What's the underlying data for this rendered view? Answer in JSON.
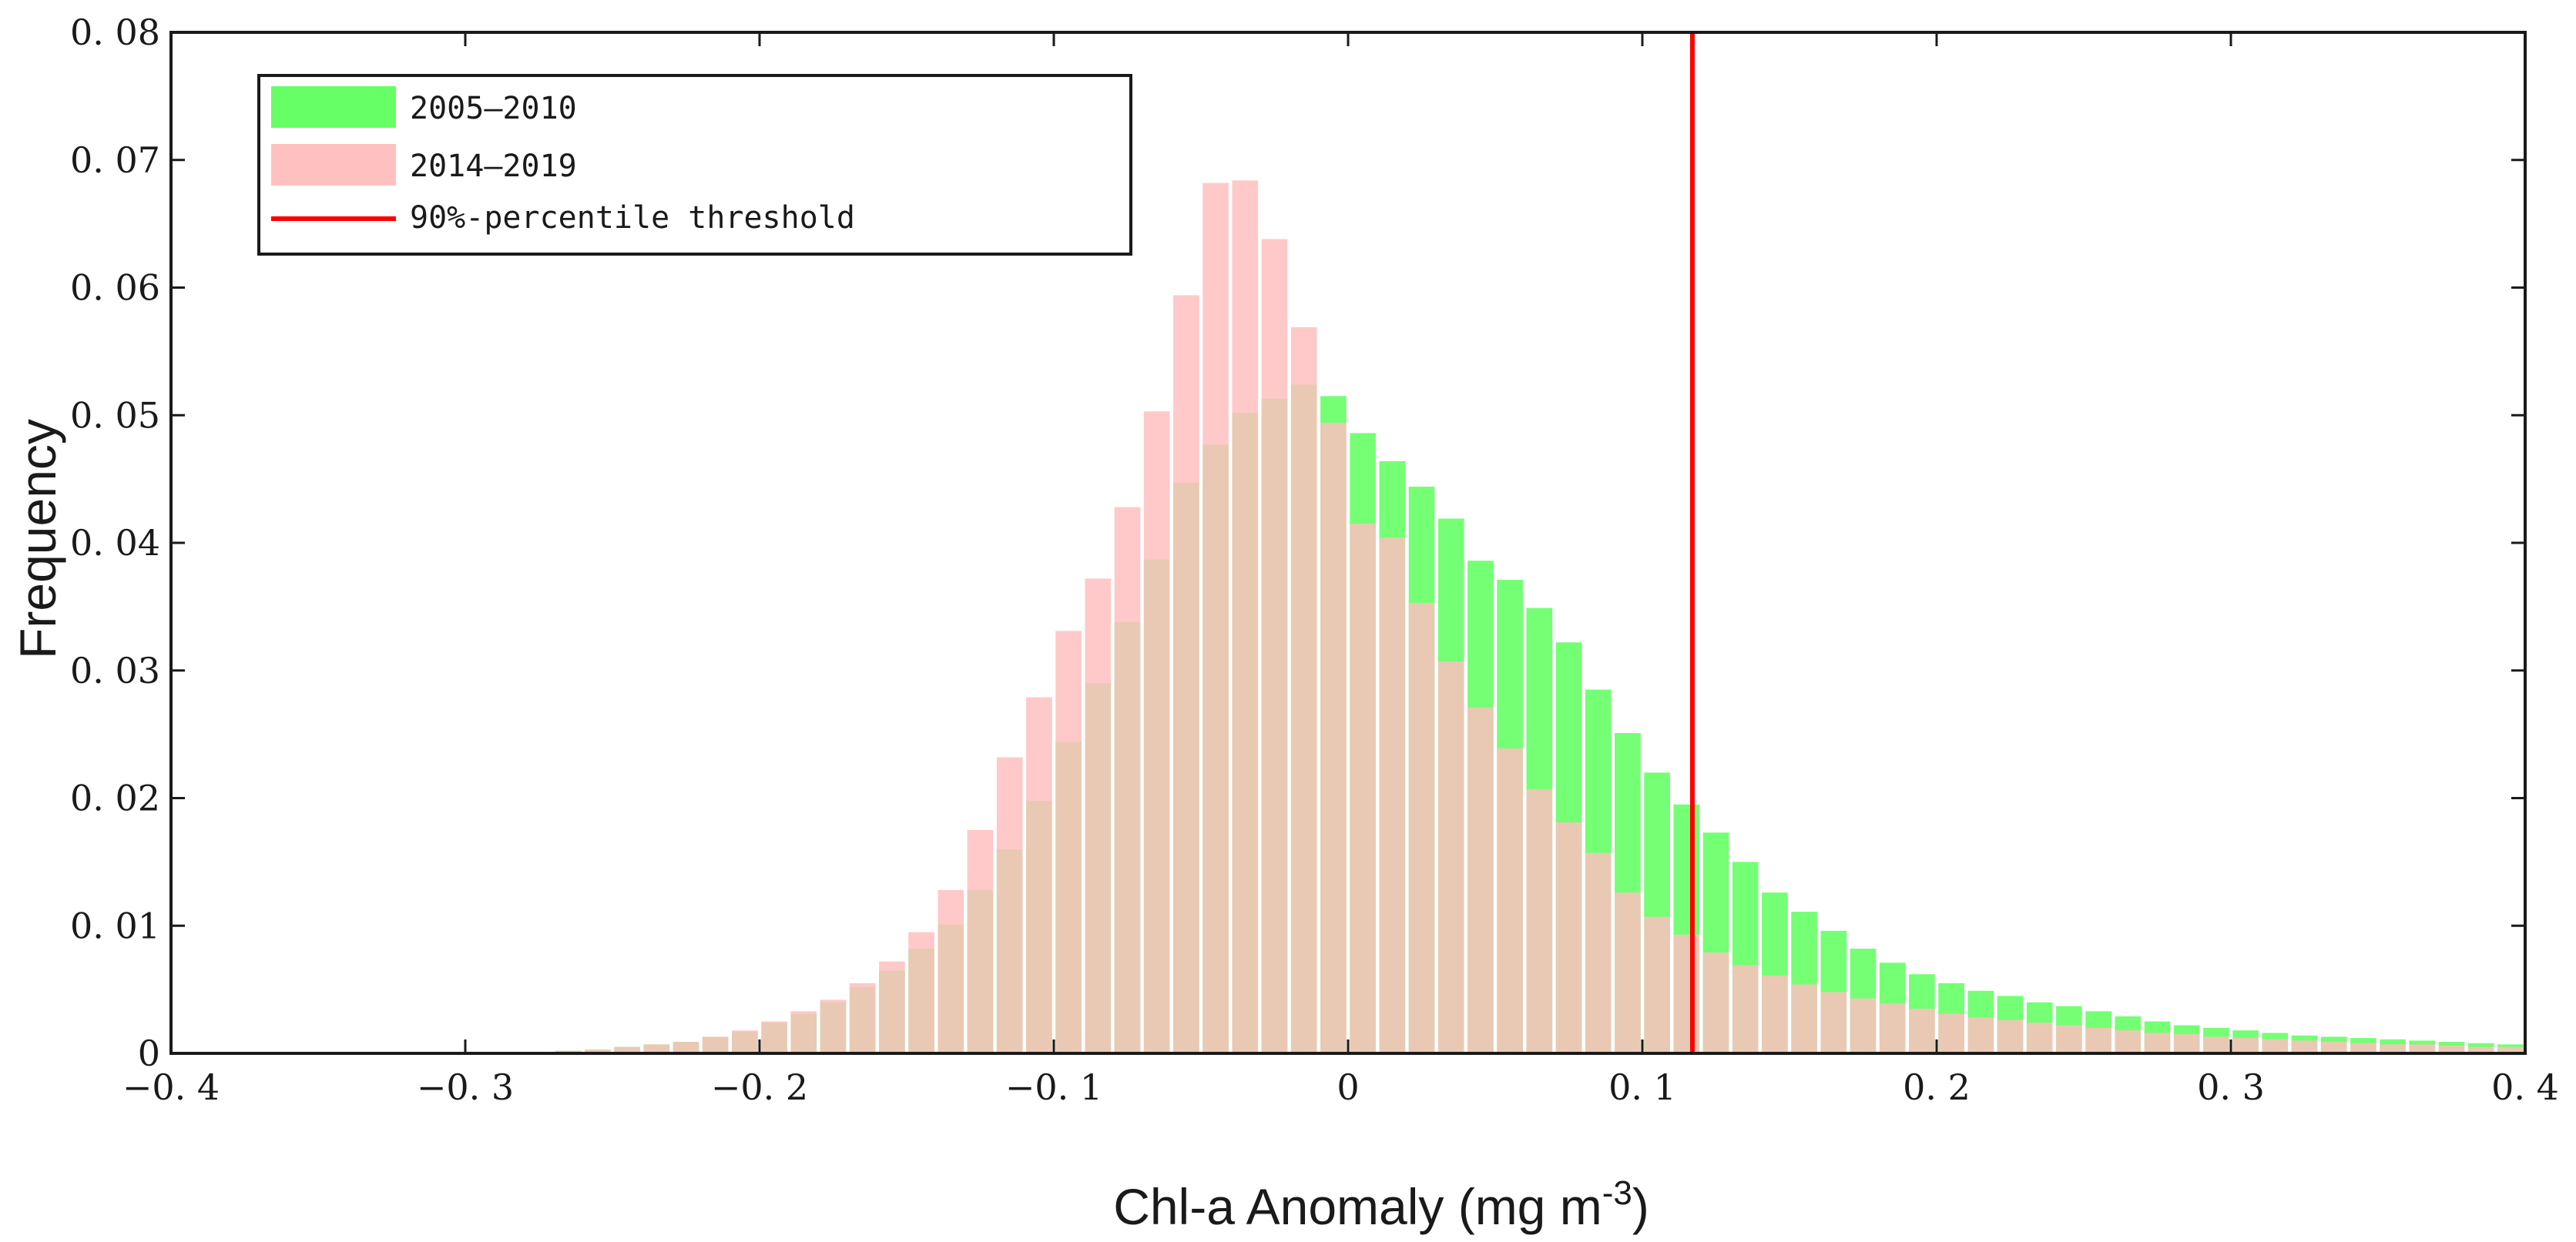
{
  "chart_data": {
    "type": "bar",
    "title": "",
    "xlabel": "Chl-a Anomaly (mg m",
    "xlabel_superscript": "-3",
    "xlabel_close": ")",
    "ylabel": "Frequency",
    "xlim": [
      -0.4,
      0.4
    ],
    "ylim": [
      0,
      0.08
    ],
    "xticks": [
      -0.4,
      -0.3,
      -0.2,
      -0.1,
      0,
      0.1,
      0.2,
      0.3,
      0.4
    ],
    "xtick_labels": [
      "−0. 4",
      "−0. 3",
      "−0. 2",
      "−0. 1",
      "0",
      "0. 1",
      "0. 2",
      "0. 3",
      "0. 4"
    ],
    "yticks": [
      0,
      0.01,
      0.02,
      0.03,
      0.04,
      0.05,
      0.06,
      0.07,
      0.08
    ],
    "ytick_labels": [
      "0",
      "0. 01",
      "0. 02",
      "0. 03",
      "0. 04",
      "0. 05",
      "0. 06",
      "0. 07",
      "0. 08"
    ],
    "bin_width": 0.01,
    "bin_centers": [
      -0.265,
      -0.255,
      -0.245,
      -0.235,
      -0.225,
      -0.215,
      -0.205,
      -0.195,
      -0.185,
      -0.175,
      -0.165,
      -0.155,
      -0.145,
      -0.135,
      -0.125,
      -0.115,
      -0.105,
      -0.095,
      -0.085,
      -0.075,
      -0.065,
      -0.055,
      -0.045,
      -0.035,
      -0.025,
      -0.015,
      -0.005,
      0.005,
      0.015,
      0.025,
      0.035,
      0.045,
      0.055,
      0.065,
      0.075,
      0.085,
      0.095,
      0.105,
      0.115,
      0.125,
      0.135,
      0.145,
      0.155,
      0.165,
      0.175,
      0.185,
      0.195,
      0.205,
      0.215,
      0.225,
      0.235,
      0.245,
      0.255,
      0.265,
      0.275,
      0.285,
      0.295,
      0.305,
      0.315,
      0.325,
      0.335,
      0.345,
      0.355,
      0.365,
      0.375,
      0.385,
      0.395
    ],
    "series": [
      {
        "name": "2005—2010",
        "color": "#66ff66",
        "opacity": 0.9,
        "values": [
          0.0002,
          0.0003,
          0.0005,
          0.0007,
          0.0009,
          0.0013,
          0.0017,
          0.0024,
          0.0031,
          0.004,
          0.0052,
          0.0065,
          0.0082,
          0.0101,
          0.0128,
          0.016,
          0.0198,
          0.0244,
          0.029,
          0.0338,
          0.0387,
          0.0447,
          0.0477,
          0.0502,
          0.0513,
          0.0524,
          0.0515,
          0.0486,
          0.0464,
          0.0444,
          0.0419,
          0.0386,
          0.0371,
          0.0349,
          0.0322,
          0.0285,
          0.0251,
          0.022,
          0.0195,
          0.0173,
          0.015,
          0.0126,
          0.0111,
          0.0096,
          0.0082,
          0.0071,
          0.0062,
          0.0055,
          0.0049,
          0.0045,
          0.004,
          0.0037,
          0.0033,
          0.0029,
          0.0025,
          0.0022,
          0.002,
          0.0018,
          0.0016,
          0.0014,
          0.0013,
          0.0012,
          0.0011,
          0.001,
          0.0009,
          0.0008,
          0.0007
        ]
      },
      {
        "name": "2014—2019",
        "color": "#ffc0c0",
        "opacity": 0.85,
        "values": [
          0.0002,
          0.0003,
          0.0005,
          0.0007,
          0.0009,
          0.0013,
          0.0018,
          0.0025,
          0.0033,
          0.0042,
          0.0055,
          0.0072,
          0.0095,
          0.0128,
          0.0175,
          0.0232,
          0.0279,
          0.0331,
          0.0372,
          0.0428,
          0.0503,
          0.0594,
          0.0682,
          0.0684,
          0.0638,
          0.0569,
          0.0494,
          0.0415,
          0.0404,
          0.0353,
          0.0307,
          0.0271,
          0.0239,
          0.0207,
          0.0181,
          0.0157,
          0.0126,
          0.0107,
          0.0093,
          0.0079,
          0.0069,
          0.0061,
          0.0054,
          0.0048,
          0.0043,
          0.0039,
          0.0035,
          0.0031,
          0.0028,
          0.0026,
          0.0024,
          0.0022,
          0.002,
          0.0018,
          0.0016,
          0.0015,
          0.0013,
          0.0012,
          0.0011,
          0.001,
          0.0009,
          0.0008,
          0.0007,
          0.0007,
          0.0006,
          0.0005,
          0.0005
        ]
      }
    ],
    "threshold": {
      "name": "90%-percentile threshold",
      "x": 0.117,
      "color": "#ff0000"
    },
    "legend": {
      "placement": "top-left",
      "entries": [
        "2005—2010",
        "2014—2019",
        "90%-percentile threshold"
      ]
    },
    "grid": false
  }
}
